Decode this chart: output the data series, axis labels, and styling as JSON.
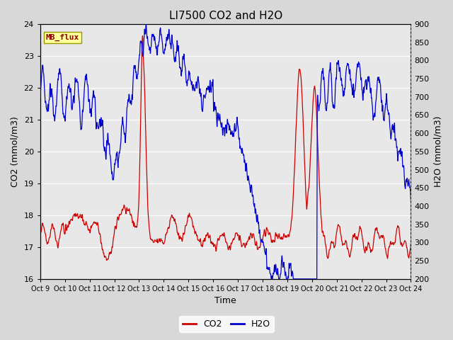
{
  "title": "LI7500 CO2 and H2O",
  "xlabel": "Time",
  "ylabel_left": "CO2 (mmol/m3)",
  "ylabel_right": "H2O (mmol/m3)",
  "annotation": "MB_flux",
  "co2_ylim": [
    16.0,
    24.0
  ],
  "h2o_ylim": [
    200,
    900
  ],
  "co2_yticks": [
    16.0,
    17.0,
    18.0,
    19.0,
    20.0,
    21.0,
    22.0,
    23.0,
    24.0
  ],
  "h2o_yticks": [
    200,
    250,
    300,
    350,
    400,
    450,
    500,
    550,
    600,
    650,
    700,
    750,
    800,
    850,
    900
  ],
  "xtick_labels": [
    "Oct 9",
    "Oct 10",
    "Oct 11",
    "Oct 12",
    "Oct 13",
    "Oct 14",
    "Oct 15",
    "Oct 16",
    "Oct 17",
    "Oct 18",
    "Oct 19",
    "Oct 20",
    "Oct 21",
    "Oct 22",
    "Oct 23",
    "Oct 24"
  ],
  "co2_color": "#CC0000",
  "h2o_color": "#0000CC",
  "fig_bg_color": "#D8D8D8",
  "plot_bg_color": "#E8E8E8",
  "annotation_bg": "#FFFF99",
  "annotation_fg": "#880000",
  "annotation_edge": "#999900",
  "title_fontsize": 11,
  "label_fontsize": 9,
  "tick_fontsize": 8,
  "legend_fontsize": 9
}
